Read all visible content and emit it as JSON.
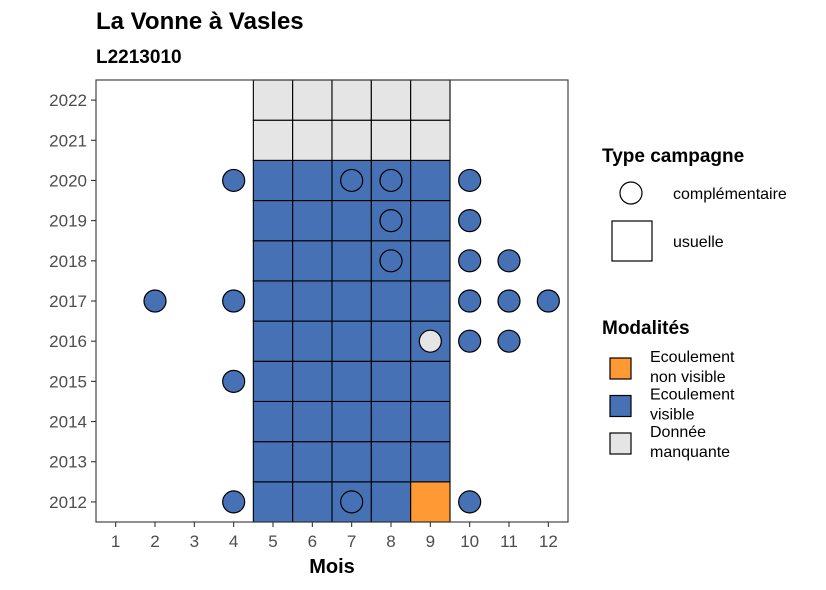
{
  "chart_data": {
    "type": "heatmap",
    "title": "La Vonne à Vasles",
    "subtitle": "L2213010",
    "xlabel": "Mois",
    "ylabel": "",
    "x_ticks": [
      1,
      2,
      3,
      4,
      5,
      6,
      7,
      8,
      9,
      10,
      11,
      12
    ],
    "y_ticks": [
      2012,
      2013,
      2014,
      2015,
      2016,
      2017,
      2018,
      2019,
      2020,
      2021,
      2022
    ],
    "xlim": [
      0.5,
      12.5
    ],
    "ylim": [
      2011.5,
      2022.5
    ],
    "colors": {
      "Ecoulement non visible": "#FF9933",
      "Ecoulement visible": "#4671B4",
      "Donnée manquante": "#E5E5E5"
    },
    "usuelle": [
      {
        "year": 2012,
        "months": [
          5,
          6,
          7,
          8,
          9
        ],
        "values": [
          "Ecoulement visible",
          "Ecoulement visible",
          "Ecoulement visible",
          "Ecoulement visible",
          "Ecoulement non visible"
        ]
      },
      {
        "year": 2013,
        "months": [
          5,
          6,
          7,
          8,
          9
        ],
        "values": [
          "Ecoulement visible",
          "Ecoulement visible",
          "Ecoulement visible",
          "Ecoulement visible",
          "Ecoulement visible"
        ]
      },
      {
        "year": 2014,
        "months": [
          5,
          6,
          7,
          8,
          9
        ],
        "values": [
          "Ecoulement visible",
          "Ecoulement visible",
          "Ecoulement visible",
          "Ecoulement visible",
          "Ecoulement visible"
        ]
      },
      {
        "year": 2015,
        "months": [
          5,
          6,
          7,
          8,
          9
        ],
        "values": [
          "Ecoulement visible",
          "Ecoulement visible",
          "Ecoulement visible",
          "Ecoulement visible",
          "Ecoulement visible"
        ]
      },
      {
        "year": 2016,
        "months": [
          5,
          6,
          7,
          8,
          9
        ],
        "values": [
          "Ecoulement visible",
          "Ecoulement visible",
          "Ecoulement visible",
          "Ecoulement visible",
          "Ecoulement visible"
        ]
      },
      {
        "year": 2017,
        "months": [
          5,
          6,
          7,
          8,
          9
        ],
        "values": [
          "Ecoulement visible",
          "Ecoulement visible",
          "Ecoulement visible",
          "Ecoulement visible",
          "Ecoulement visible"
        ]
      },
      {
        "year": 2018,
        "months": [
          5,
          6,
          7,
          8,
          9
        ],
        "values": [
          "Ecoulement visible",
          "Ecoulement visible",
          "Ecoulement visible",
          "Ecoulement visible",
          "Ecoulement visible"
        ]
      },
      {
        "year": 2019,
        "months": [
          5,
          6,
          7,
          8,
          9
        ],
        "values": [
          "Ecoulement visible",
          "Ecoulement visible",
          "Ecoulement visible",
          "Ecoulement visible",
          "Ecoulement visible"
        ]
      },
      {
        "year": 2020,
        "months": [
          5,
          6,
          7,
          8,
          9
        ],
        "values": [
          "Ecoulement visible",
          "Ecoulement visible",
          "Ecoulement visible",
          "Ecoulement visible",
          "Ecoulement visible"
        ]
      },
      {
        "year": 2021,
        "months": [
          5,
          6,
          7,
          8,
          9
        ],
        "values": [
          "Donnée manquante",
          "Donnée manquante",
          "Donnée manquante",
          "Donnée manquante",
          "Donnée manquante"
        ]
      },
      {
        "year": 2022,
        "months": [
          5,
          6,
          7,
          8,
          9
        ],
        "values": [
          "Donnée manquante",
          "Donnée manquante",
          "Donnée manquante",
          "Donnée manquante",
          "Donnée manquante"
        ]
      }
    ],
    "complementaire": [
      {
        "year": 2012,
        "month": 4,
        "value": "Ecoulement visible"
      },
      {
        "year": 2012,
        "month": 7,
        "value": "Ecoulement visible"
      },
      {
        "year": 2012,
        "month": 10,
        "value": "Ecoulement visible"
      },
      {
        "year": 2015,
        "month": 4,
        "value": "Ecoulement visible"
      },
      {
        "year": 2016,
        "month": 9,
        "value": "Donnée manquante"
      },
      {
        "year": 2016,
        "month": 10,
        "value": "Ecoulement visible"
      },
      {
        "year": 2016,
        "month": 11,
        "value": "Ecoulement visible"
      },
      {
        "year": 2017,
        "month": 2,
        "value": "Ecoulement visible"
      },
      {
        "year": 2017,
        "month": 4,
        "value": "Ecoulement visible"
      },
      {
        "year": 2017,
        "month": 10,
        "value": "Ecoulement visible"
      },
      {
        "year": 2017,
        "month": 11,
        "value": "Ecoulement visible"
      },
      {
        "year": 2017,
        "month": 12,
        "value": "Ecoulement visible"
      },
      {
        "year": 2018,
        "month": 8,
        "value": "Ecoulement visible"
      },
      {
        "year": 2018,
        "month": 10,
        "value": "Ecoulement visible"
      },
      {
        "year": 2018,
        "month": 11,
        "value": "Ecoulement visible"
      },
      {
        "year": 2019,
        "month": 8,
        "value": "Ecoulement visible"
      },
      {
        "year": 2019,
        "month": 10,
        "value": "Ecoulement visible"
      },
      {
        "year": 2020,
        "month": 4,
        "value": "Ecoulement visible"
      },
      {
        "year": 2020,
        "month": 7,
        "value": "Ecoulement visible"
      },
      {
        "year": 2020,
        "month": 8,
        "value": "Ecoulement visible"
      },
      {
        "year": 2020,
        "month": 10,
        "value": "Ecoulement visible"
      }
    ],
    "legend": {
      "type_title": "Type campagne",
      "type_items": [
        "complémentaire",
        "usuelle"
      ],
      "modalites_title": "Modalités",
      "modalites_items": [
        {
          "key": "Ecoulement non visible",
          "lines": [
            "Ecoulement",
            "non visible"
          ]
        },
        {
          "key": "Ecoulement visible",
          "lines": [
            "Ecoulement",
            "visible"
          ]
        },
        {
          "key": "Donnée manquante",
          "lines": [
            "Donnée",
            "manquante"
          ]
        }
      ],
      "position": "right"
    },
    "grid": false
  }
}
